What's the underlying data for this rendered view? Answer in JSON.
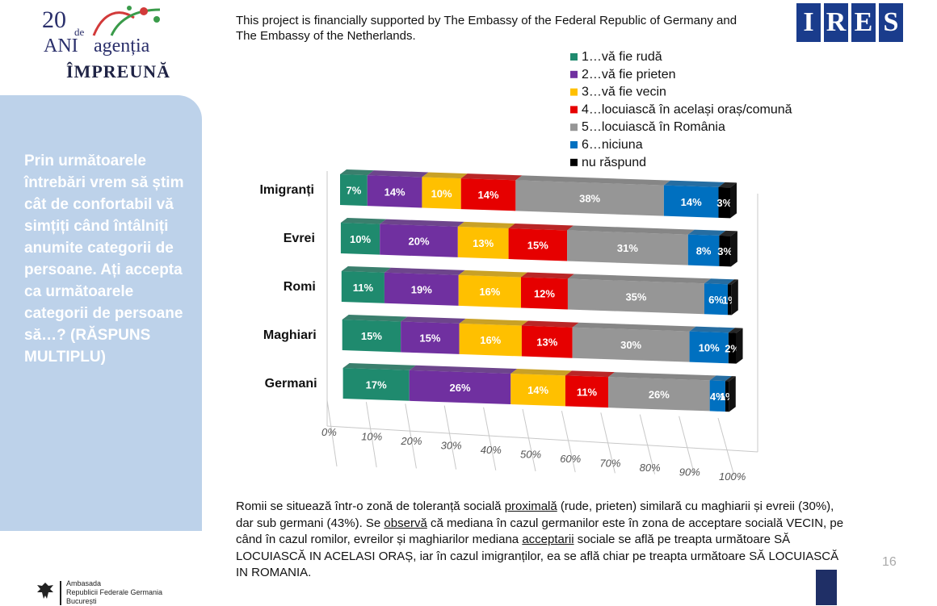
{
  "logo": {
    "line1_num": "20",
    "line1_de": "de",
    "line2_ani": "ANI",
    "line2_agentia": "agenția",
    "line3": "ÎMPREUNĂ"
  },
  "support_text": "This project is financially supported by The Embassy of the Federal Republic of Germany and The Embassy of the Netherlands.",
  "ires": {
    "letters": [
      "I",
      "R",
      "E",
      "S"
    ],
    "color": "#1a3c8c"
  },
  "sidebar_text": "Prin următoarele întrebări vrem să știm cât de confortabil vă simțiți când întâlniți anumite categorii de persoane. Ați accepta ca următoarele categorii de persoane să…? (RĂSPUNS MULTIPLU)",
  "chart_data": {
    "type": "bar",
    "orientation": "horizontal",
    "stacked": true,
    "percent": true,
    "categories": [
      "Imigranți",
      "Evrei",
      "Romi",
      "Maghiari",
      "Germani"
    ],
    "series": [
      {
        "name": "1…vă fie rudă",
        "color": "#1f8a6e",
        "values": [
          7,
          10,
          11,
          15,
          17
        ]
      },
      {
        "name": "2…vă fie prieten",
        "color": "#7030a0",
        "values": [
          14,
          20,
          19,
          15,
          26
        ]
      },
      {
        "name": "3…vă fie vecin",
        "color": "#ffc000",
        "values": [
          10,
          13,
          16,
          16,
          14
        ]
      },
      {
        "name": "4…locuiască în același oraș/comună",
        "color": "#e60000",
        "values": [
          14,
          15,
          12,
          13,
          11
        ]
      },
      {
        "name": "5…locuiască în România",
        "color": "#969696",
        "values": [
          38,
          31,
          35,
          30,
          26
        ]
      },
      {
        "name": "6…niciuna",
        "color": "#0070c0",
        "values": [
          14,
          8,
          6,
          10,
          4
        ]
      },
      {
        "name": "nu răspund",
        "color": "#000000",
        "values": [
          3,
          3,
          1,
          2,
          1
        ]
      }
    ],
    "bar_labels": [
      [
        "7%",
        "14%",
        "10%",
        "14%",
        "38%",
        "14%",
        "3%"
      ],
      [
        "10%",
        "20%",
        "13%",
        "15%",
        "31%",
        "8%",
        "3%"
      ],
      [
        "11%",
        "19%",
        "16%",
        "12%",
        "35%",
        "6%",
        "1%"
      ],
      [
        "15%",
        "15%",
        "16%",
        "13%",
        "30%",
        "10%",
        "2%"
      ],
      [
        "17%",
        "26%",
        "14%",
        "11%",
        "26%",
        "4%",
        "1%"
      ]
    ],
    "x_ticks": [
      "0%",
      "10%",
      "20%",
      "30%",
      "40%",
      "50%",
      "60%",
      "70%",
      "80%",
      "90%",
      "100%"
    ],
    "xlim": [
      0,
      100
    ],
    "legend_position": "top-right",
    "grid": true,
    "style": "3d"
  },
  "body_text": {
    "p1": "Romii se situează într-o zonă de toleranță socială ",
    "p1_u": "proximală",
    "p2": " (rude, prieten) similară cu maghiarii și evreii (30%), dar sub germani (43%). Se ",
    "p2_u": "observă",
    "p3": " că mediana în cazul germanilor este în zona de acceptare socială VECIN, pe când în cazul romilor, evreilor și maghiarilor mediana ",
    "p3_u": "acceptarii",
    "p4": " sociale se află pe treapta următoare SĂ LOCUIASCĂ IN ACELASI ORAȘ, iar în cazul imigranților, ea se află chiar pe treapta următoare SĂ LOCUIASCĂ IN ROMANIA."
  },
  "page_number": "16",
  "embassy": {
    "line1": "Ambasada",
    "line2": "Republicii Federale Germania",
    "line3": "București"
  }
}
